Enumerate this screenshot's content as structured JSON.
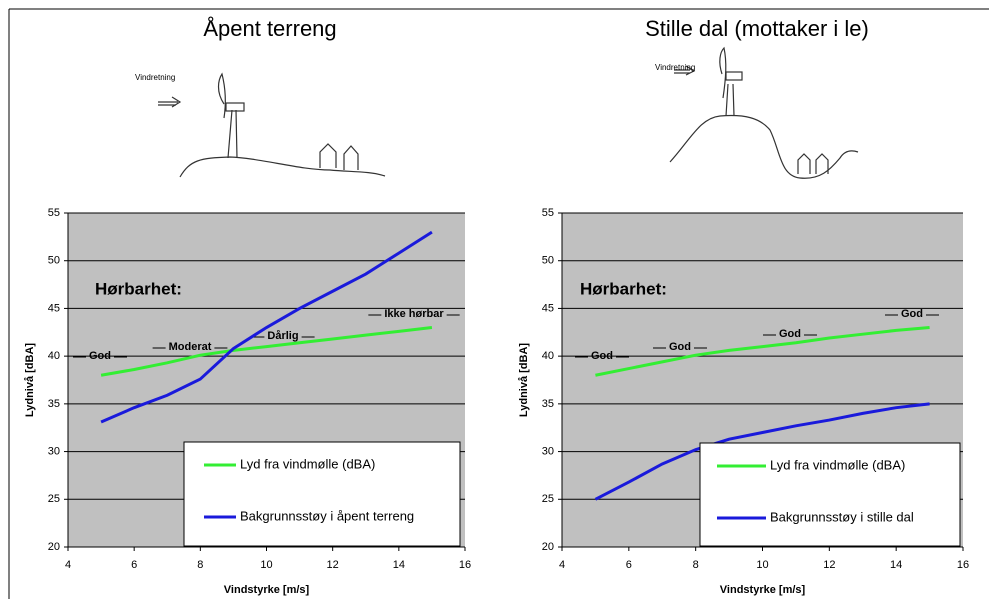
{
  "chart_data": [
    {
      "type": "line",
      "title": "Åpent terreng",
      "sketch_label": "Vindretning",
      "xlabel": "Vindstyrke [m/s]",
      "ylabel": "Lydnivå [dBA]",
      "x": [
        5,
        6,
        7,
        8,
        9,
        10,
        11,
        12,
        13,
        14,
        15
      ],
      "series": [
        {
          "name": "Lyd fra vindmølle (dBA)",
          "color": "#33ee33",
          "values": [
            38,
            38.6,
            39.3,
            40.1,
            40.6,
            41,
            41.4,
            41.8,
            42.2,
            42.6,
            43
          ]
        },
        {
          "name": "Bakgrunnsstøy i åpent terreng",
          "color": "#1a1adb",
          "values": [
            33.1,
            34.6,
            35.9,
            37.6,
            40.8,
            43,
            45,
            46.8,
            48.6,
            50.8,
            53
          ]
        }
      ],
      "annotation_title": "Hørbarhet:",
      "annotations": [
        "God",
        "Moderat",
        "Dårlig",
        "Ikke hørbar"
      ],
      "xlim": [
        4,
        16
      ],
      "xticks": [
        4,
        6,
        8,
        10,
        12,
        14,
        16
      ],
      "ylim": [
        20,
        55
      ],
      "yticks": [
        20,
        25,
        30,
        35,
        40,
        45,
        50,
        55
      ],
      "grid": true,
      "legend": "lower right"
    },
    {
      "type": "line",
      "title": "Stille dal (mottaker i le)",
      "sketch_label": "Vindretning",
      "xlabel": "Vindstyrke [m/s]",
      "ylabel": "Lydnivå [dBA]",
      "x": [
        5,
        6,
        7,
        8,
        9,
        10,
        11,
        12,
        13,
        14,
        15
      ],
      "series": [
        {
          "name": "Lyd fra vindmølle (dBA)",
          "color": "#33ee33",
          "values": [
            38,
            38.7,
            39.4,
            40.1,
            40.6,
            41,
            41.4,
            41.9,
            42.3,
            42.7,
            43
          ]
        },
        {
          "name": "Bakgrunnsstøy i stille dal",
          "color": "#1a1adb",
          "values": [
            25,
            26.8,
            28.7,
            30.2,
            31.3,
            32,
            32.7,
            33.3,
            34,
            34.6,
            35
          ]
        }
      ],
      "annotation_title": "Hørbarhet:",
      "annotations": [
        "God",
        "God",
        "God",
        "God"
      ],
      "xlim": [
        4,
        16
      ],
      "xticks": [
        4,
        6,
        8,
        10,
        12,
        14,
        16
      ],
      "ylim": [
        20,
        55
      ],
      "yticks": [
        20,
        25,
        30,
        35,
        40,
        45,
        50,
        55
      ],
      "grid": true,
      "legend": "lower right"
    }
  ]
}
